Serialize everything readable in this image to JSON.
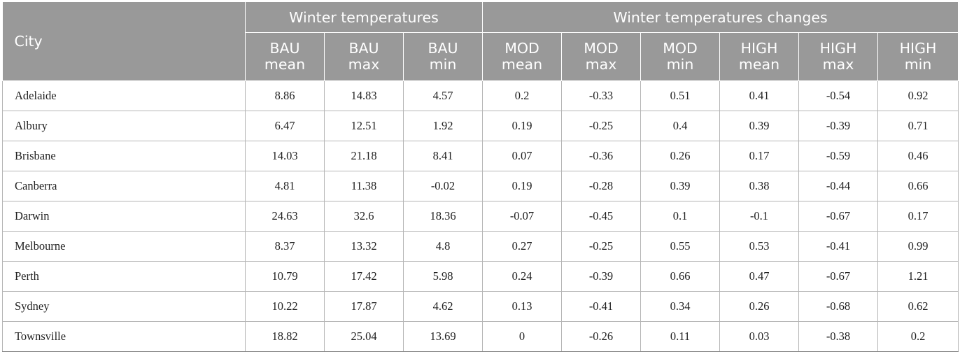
{
  "table": {
    "header": {
      "city": "City",
      "group1": "Winter temperatures",
      "group2": "Winter temperatures changes",
      "columns": [
        [
          "BAU",
          "mean"
        ],
        [
          "BAU",
          "max"
        ],
        [
          "BAU",
          "min"
        ],
        [
          "MOD",
          "mean"
        ],
        [
          "MOD",
          "max"
        ],
        [
          "MOD",
          "min"
        ],
        [
          "HIGH",
          "mean"
        ],
        [
          "HIGH",
          "max"
        ],
        [
          "HIGH",
          "min"
        ]
      ]
    },
    "rows": [
      [
        "Adelaide",
        "8.86",
        "14.83",
        "4.57",
        "0.2",
        "-0.33",
        "0.51",
        "0.41",
        "-0.54",
        "0.92"
      ],
      [
        "Albury",
        "6.47",
        "12.51",
        "1.92",
        "0.19",
        "-0.25",
        "0.4",
        "0.39",
        "-0.39",
        "0.71"
      ],
      [
        "Brisbane",
        "14.03",
        "21.18",
        "8.41",
        "0.07",
        "-0.36",
        "0.26",
        "0.17",
        "-0.59",
        "0.46"
      ],
      [
        "Canberra",
        "4.81",
        "11.38",
        "-0.02",
        "0.19",
        "-0.28",
        "0.39",
        "0.38",
        "-0.44",
        "0.66"
      ],
      [
        "Darwin",
        "24.63",
        "32.6",
        "18.36",
        "-0.07",
        "-0.45",
        "0.1",
        "-0.1",
        "-0.67",
        "0.17"
      ],
      [
        "Melbourne",
        "8.37",
        "13.32",
        "4.8",
        "0.27",
        "-0.25",
        "0.55",
        "0.53",
        "-0.41",
        "0.99"
      ],
      [
        "Perth",
        "10.79",
        "17.42",
        "5.98",
        "0.24",
        "-0.39",
        "0.66",
        "0.47",
        "-0.67",
        "1.21"
      ],
      [
        "Sydney",
        "10.22",
        "17.87",
        "4.62",
        "0.13",
        "-0.41",
        "0.34",
        "0.26",
        "-0.68",
        "0.62"
      ],
      [
        "Townsville",
        "18.82",
        "25.04",
        "13.69",
        "0",
        "-0.26",
        "0.11",
        "0.03",
        "-0.38",
        "0.2"
      ]
    ]
  }
}
